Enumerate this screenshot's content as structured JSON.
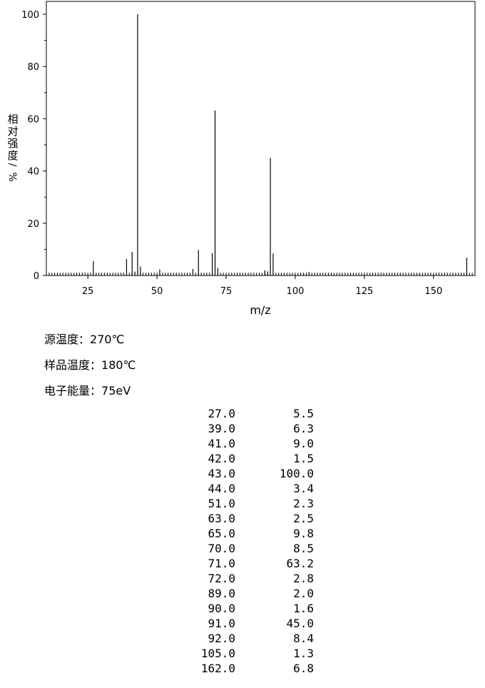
{
  "chart_data": {
    "type": "bar",
    "ylabel": "相对强度/%",
    "xlabel": "m/z",
    "xlim": [
      10,
      165
    ],
    "ylim": [
      0,
      100
    ],
    "xticks": [
      25,
      50,
      75,
      100,
      125,
      150
    ],
    "yticks": [
      0,
      20,
      40,
      60,
      80,
      100
    ],
    "peaks": [
      {
        "x": 27.0,
        "y": 5.5
      },
      {
        "x": 39.0,
        "y": 6.3
      },
      {
        "x": 41.0,
        "y": 9.0
      },
      {
        "x": 42.0,
        "y": 1.5
      },
      {
        "x": 43.0,
        "y": 100.0
      },
      {
        "x": 44.0,
        "y": 3.4
      },
      {
        "x": 51.0,
        "y": 2.3
      },
      {
        "x": 63.0,
        "y": 2.5
      },
      {
        "x": 65.0,
        "y": 9.8
      },
      {
        "x": 70.0,
        "y": 8.5
      },
      {
        "x": 71.0,
        "y": 63.2
      },
      {
        "x": 72.0,
        "y": 2.8
      },
      {
        "x": 89.0,
        "y": 2.0
      },
      {
        "x": 90.0,
        "y": 1.6
      },
      {
        "x": 91.0,
        "y": 45.0
      },
      {
        "x": 92.0,
        "y": 8.4
      },
      {
        "x": 105.0,
        "y": 1.3
      },
      {
        "x": 162.0,
        "y": 6.8
      }
    ]
  },
  "conditions": {
    "source_temp_label": "源温度：",
    "source_temp_value": "270℃",
    "sample_temp_label": "样品温度：",
    "sample_temp_value": "180℃",
    "electron_energy_label": "电子能量：",
    "electron_energy_value": "75eV"
  },
  "table": [
    {
      "mz": "27.0",
      "intensity": "5.5"
    },
    {
      "mz": "39.0",
      "intensity": "6.3"
    },
    {
      "mz": "41.0",
      "intensity": "9.0"
    },
    {
      "mz": "42.0",
      "intensity": "1.5"
    },
    {
      "mz": "43.0",
      "intensity": "100.0"
    },
    {
      "mz": "44.0",
      "intensity": "3.4"
    },
    {
      "mz": "51.0",
      "intensity": "2.3"
    },
    {
      "mz": "63.0",
      "intensity": "2.5"
    },
    {
      "mz": "65.0",
      "intensity": "9.8"
    },
    {
      "mz": "70.0",
      "intensity": "8.5"
    },
    {
      "mz": "71.0",
      "intensity": "63.2"
    },
    {
      "mz": "72.0",
      "intensity": "2.8"
    },
    {
      "mz": "89.0",
      "intensity": "2.0"
    },
    {
      "mz": "90.0",
      "intensity": "1.6"
    },
    {
      "mz": "91.0",
      "intensity": "45.0"
    },
    {
      "mz": "92.0",
      "intensity": "8.4"
    },
    {
      "mz": "105.0",
      "intensity": "1.3"
    },
    {
      "mz": "162.0",
      "intensity": "6.8"
    }
  ]
}
